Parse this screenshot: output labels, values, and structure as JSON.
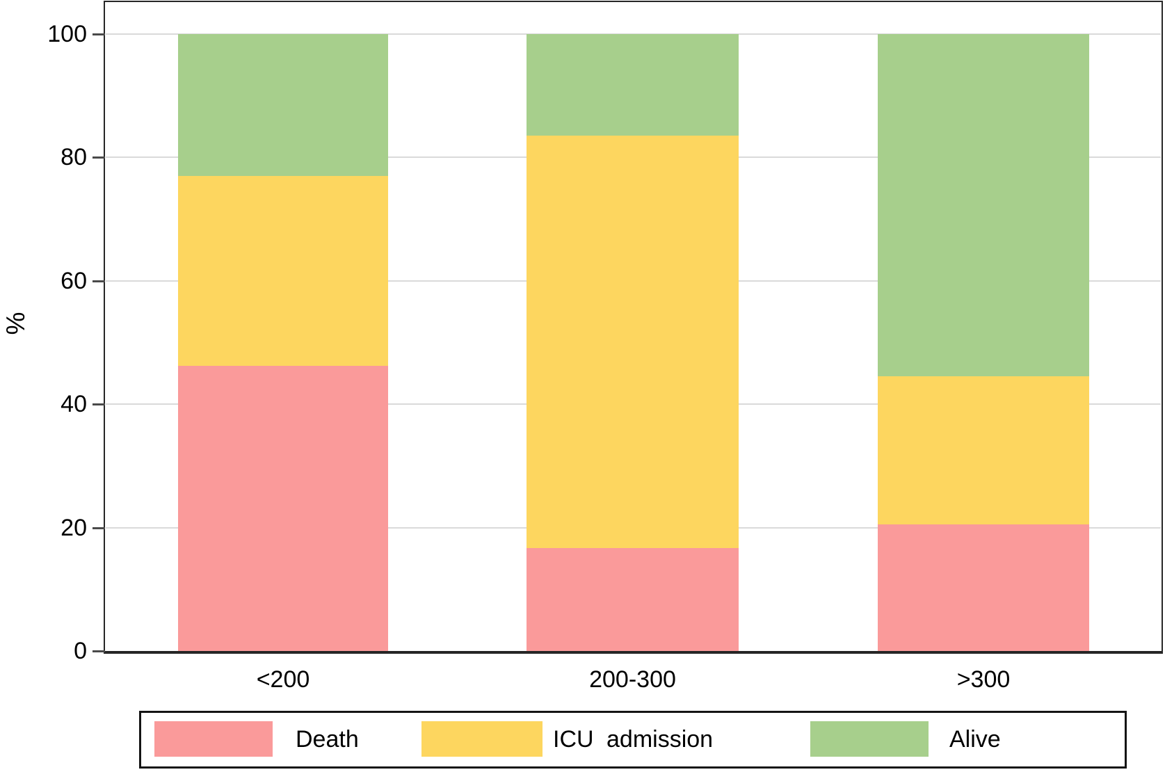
{
  "chart_data": {
    "type": "bar",
    "stacked": true,
    "title": "",
    "xlabel": "",
    "ylabel": "%",
    "categories": [
      "<200",
      "200-300",
      ">300"
    ],
    "series": [
      {
        "name": "Death",
        "color": "#fa9a9a",
        "values": [
          46.2,
          16.7,
          20.5
        ]
      },
      {
        "name": "ICU admission",
        "color": "#fdd65f",
        "values": [
          30.8,
          66.8,
          24.0
        ]
      },
      {
        "name": "Alive",
        "color": "#a7cf8c",
        "values": [
          23.0,
          16.5,
          55.5
        ]
      }
    ],
    "yticks": [
      0,
      20,
      40,
      60,
      80,
      100
    ],
    "ylim": [
      0,
      100
    ],
    "grid": "horizontal",
    "legend_position": "bottom",
    "colors": {
      "death": "#fa9a9a",
      "icu_admission": "#fdd65f",
      "alive": "#a7cf8c",
      "gridline": "#dadada",
      "frame": "#262626"
    }
  }
}
